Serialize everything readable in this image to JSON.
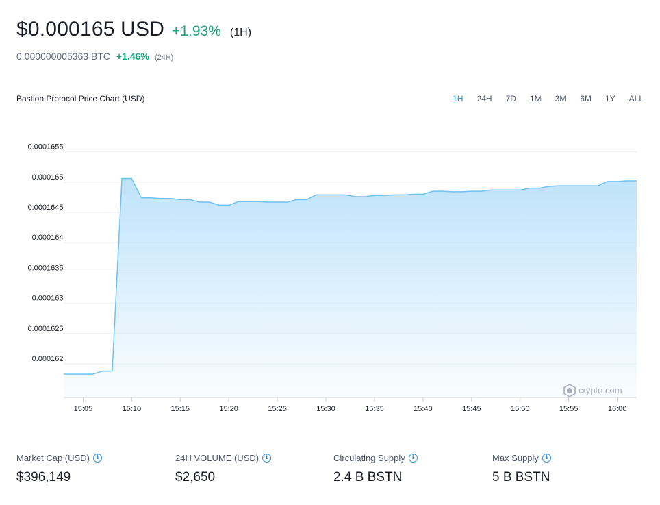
{
  "header": {
    "price": "$0.000165 USD",
    "change_usd": "+1.93%",
    "period_usd": "(1H)",
    "btc_price": "0.000000005363 BTC",
    "change_btc": "+1.46%",
    "period_btc": "(24H)"
  },
  "chart_title": "Bastion Protocol Price Chart (USD)",
  "ranges": [
    "1H",
    "24H",
    "7D",
    "1M",
    "3M",
    "6M",
    "1Y",
    "ALL"
  ],
  "active_range": "1H",
  "watermark": "crypto.com",
  "colors": {
    "line": "#6ec1f2",
    "area": "#bfe3fb",
    "positive": "#1aa37c",
    "accent": "#1a8fd6"
  },
  "chart_data": {
    "type": "area",
    "title": "Bastion Protocol Price Chart (USD)",
    "xlabel": "",
    "ylabel": "",
    "ylim": [
      0.0001615,
      0.0001657
    ],
    "yticks": [
      "0.0001655",
      "0.000165",
      "0.0001645",
      "0.000164",
      "0.0001635",
      "0.000163",
      "0.0001625",
      "0.000162"
    ],
    "xticks": [
      "15:05",
      "15:10",
      "15:15",
      "15:20",
      "15:25",
      "15:30",
      "15:35",
      "15:40",
      "15:45",
      "15:50",
      "15:55",
      "16:00"
    ],
    "grid": true,
    "series": [
      {
        "x": [
          "15:03",
          "15:04",
          "15:05",
          "15:06",
          "15:07",
          "15:08",
          "15:09",
          "15:10",
          "15:11",
          "15:12",
          "15:13",
          "15:14",
          "15:15",
          "15:16",
          "15:17",
          "15:18",
          "15:19",
          "15:20",
          "15:21",
          "15:22",
          "15:23",
          "15:24",
          "15:25",
          "15:26",
          "15:27",
          "15:28",
          "15:29",
          "15:30",
          "15:31",
          "15:32",
          "15:33",
          "15:34",
          "15:35",
          "15:36",
          "15:37",
          "15:38",
          "15:39",
          "15:40",
          "15:41",
          "15:42",
          "15:43",
          "15:44",
          "15:45",
          "15:46",
          "15:47",
          "15:48",
          "15:49",
          "15:50",
          "15:51",
          "15:52",
          "15:53",
          "15:54",
          "15:55",
          "15:56",
          "15:57",
          "15:58",
          "15:59",
          "16:00",
          "16:01",
          "16:02"
        ],
        "values": [
          0.00016183,
          0.00016183,
          0.00016183,
          0.00016183,
          0.00016188,
          0.00016188,
          0.00016506,
          0.00016506,
          0.00016474,
          0.00016474,
          0.00016473,
          0.00016473,
          0.00016471,
          0.00016471,
          0.00016467,
          0.00016467,
          0.00016462,
          0.00016462,
          0.00016468,
          0.00016468,
          0.00016468,
          0.00016467,
          0.00016467,
          0.00016467,
          0.00016471,
          0.00016471,
          0.00016479,
          0.00016479,
          0.00016479,
          0.00016479,
          0.00016476,
          0.00016476,
          0.00016478,
          0.00016478,
          0.00016479,
          0.00016479,
          0.0001648,
          0.0001648,
          0.00016485,
          0.00016485,
          0.00016484,
          0.00016484,
          0.00016485,
          0.00016485,
          0.00016487,
          0.00016487,
          0.00016487,
          0.00016487,
          0.0001649,
          0.0001649,
          0.00016493,
          0.00016494,
          0.00016494,
          0.00016494,
          0.00016494,
          0.00016494,
          0.00016501,
          0.00016501,
          0.00016502,
          0.00016502
        ]
      }
    ]
  },
  "stats": [
    {
      "label": "Market Cap (USD)",
      "value": "$396,149"
    },
    {
      "label": "24H VOLUME (USD)",
      "value": "$2,650"
    },
    {
      "label": "Circulating Supply",
      "value": "2.4 B BSTN"
    },
    {
      "label": "Max Supply",
      "value": "5 B BSTN"
    }
  ]
}
